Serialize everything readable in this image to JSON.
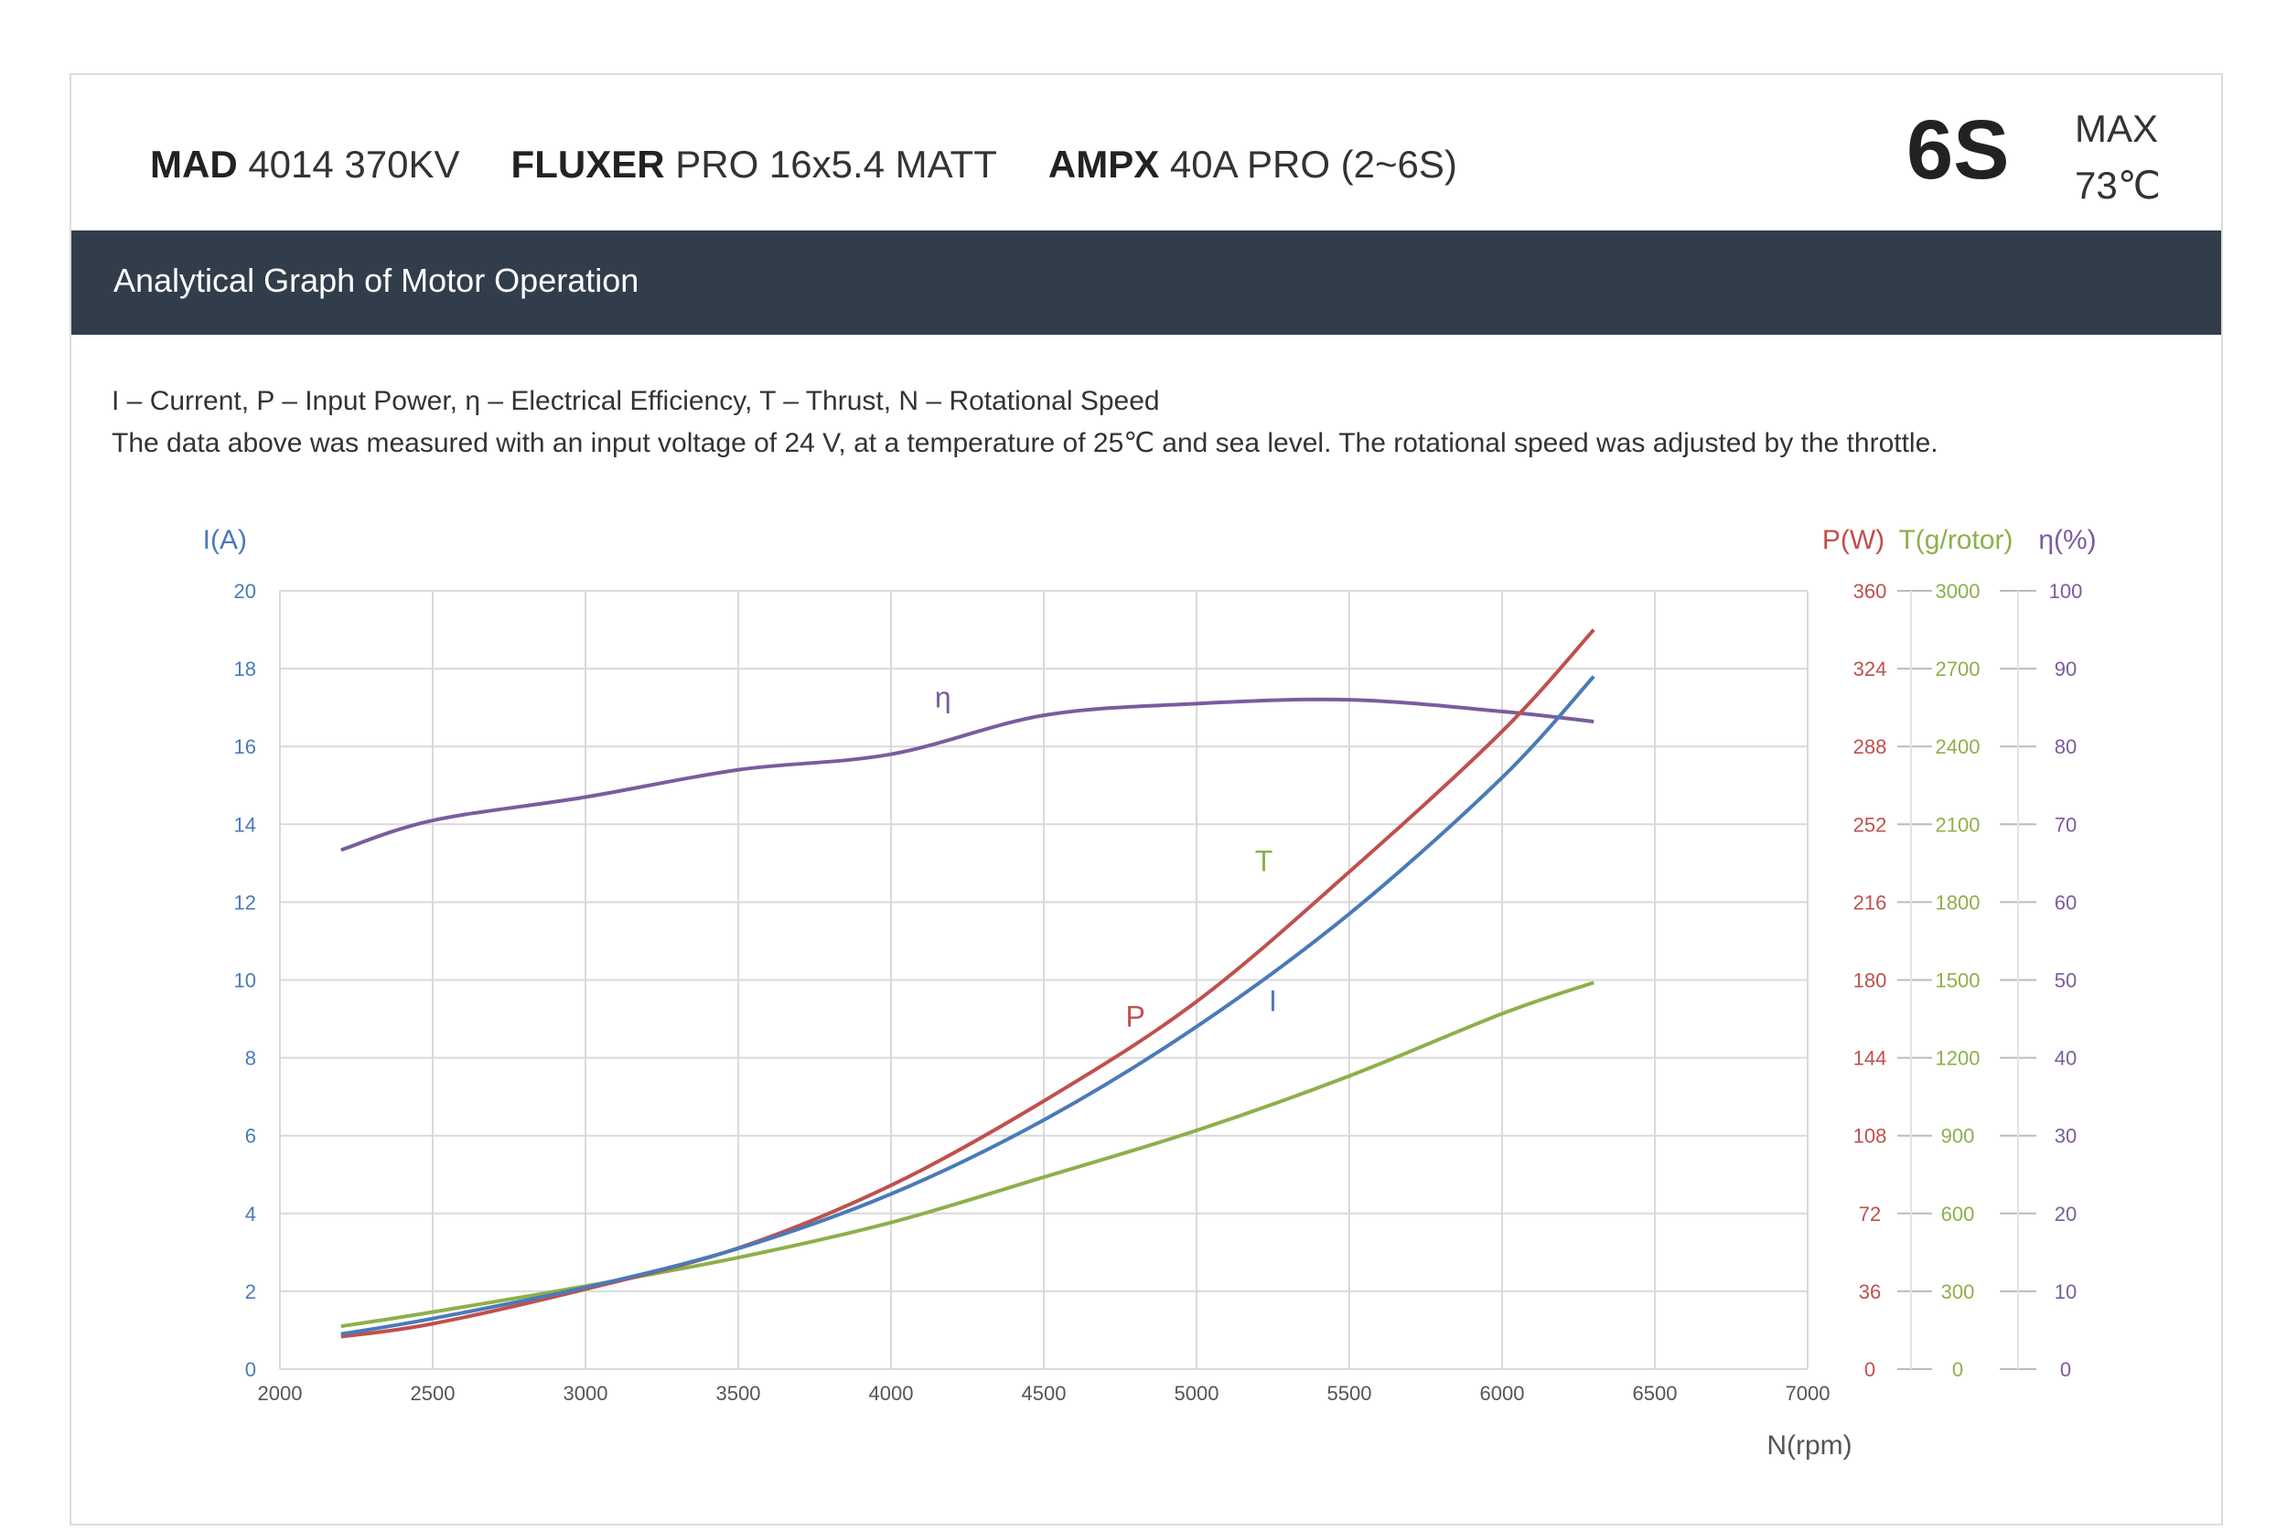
{
  "header": {
    "motor_brand": "MAD",
    "motor_model": "4014 370KV",
    "prop_brand": "FLUXER",
    "prop_model": "PRO 16x5.4 MATT",
    "esc_brand": "AMPX",
    "esc_model": "40A PRO (2~6S)",
    "cells": "6S",
    "max_label": "MAX",
    "max_temp": "73℃"
  },
  "section": {
    "title": "Analytical Graph of Motor Operation"
  },
  "description": {
    "legend_line": "I – Current, P – Input Power, η – Electrical Efficiency, T – Thrust,   N – Rotational Speed",
    "conditions_line": "The data above was measured with an input voltage of 24 V, at a temperature of 25℃ and sea level. The rotational speed was adjusted by the throttle."
  },
  "colors": {
    "current": "#4a7ab8",
    "power": "#c0504d",
    "thrust": "#8db04a",
    "efficiency": "#7a5c9e",
    "grid": "#d9d9d9",
    "header_bar": "#323d4c"
  },
  "chart_data": {
    "type": "line",
    "xlabel": "N(rpm)",
    "xlim": [
      2000,
      7000
    ],
    "xticks": [
      "2000",
      "2500",
      "3000",
      "3500",
      "4000",
      "4500",
      "5000",
      "5500",
      "6000",
      "6500",
      "7000"
    ],
    "x": [
      2200,
      2500,
      3000,
      3500,
      4000,
      4500,
      5000,
      5500,
      6000,
      6300
    ],
    "axes": [
      {
        "id": "I",
        "label": "I(A)",
        "side": "left",
        "lim": [
          0,
          20
        ],
        "ticks": [
          "0",
          "2",
          "4",
          "6",
          "8",
          "10",
          "12",
          "14",
          "16",
          "18",
          "20"
        ]
      },
      {
        "id": "P",
        "label": "P(W)",
        "side": "right",
        "lim": [
          0,
          360
        ],
        "ticks": [
          "0",
          "36",
          "72",
          "108",
          "144",
          "180",
          "216",
          "252",
          "288",
          "324",
          "360"
        ]
      },
      {
        "id": "T",
        "label": "T(g/rotor)",
        "side": "right",
        "lim": [
          0,
          3000
        ],
        "ticks": [
          "0",
          "300",
          "600",
          "900",
          "1200",
          "1500",
          "1800",
          "2100",
          "2400",
          "2700",
          "3000"
        ]
      },
      {
        "id": "eta",
        "label": "η(%)",
        "side": "right",
        "lim": [
          0,
          100
        ],
        "ticks": [
          "0",
          "10",
          "20",
          "30",
          "40",
          "50",
          "60",
          "70",
          "80",
          "90",
          "100"
        ]
      }
    ],
    "series": [
      {
        "name": "I",
        "axis": "I",
        "label_at": [
          5250,
          9.2
        ],
        "values": [
          0.9,
          1.3,
          2.1,
          3.1,
          4.5,
          6.4,
          8.8,
          11.7,
          15.2,
          17.8
        ]
      },
      {
        "name": "P",
        "axis": "P",
        "label_at": [
          4800,
          8.8
        ],
        "values": [
          15,
          21,
          37,
          56,
          85,
          124,
          170,
          230,
          295,
          342
        ]
      },
      {
        "name": "T",
        "axis": "T",
        "label_at": [
          5220,
          12.8
        ],
        "values": [
          165,
          220,
          320,
          430,
          565,
          740,
          920,
          1130,
          1370,
          1490
        ]
      },
      {
        "name": "η",
        "axis": "eta",
        "label_at": [
          4170,
          17.0
        ],
        "values": [
          66.7,
          70.5,
          73.5,
          77,
          79,
          84,
          85.5,
          86,
          84.5,
          83.2
        ]
      }
    ],
    "grid": true
  }
}
